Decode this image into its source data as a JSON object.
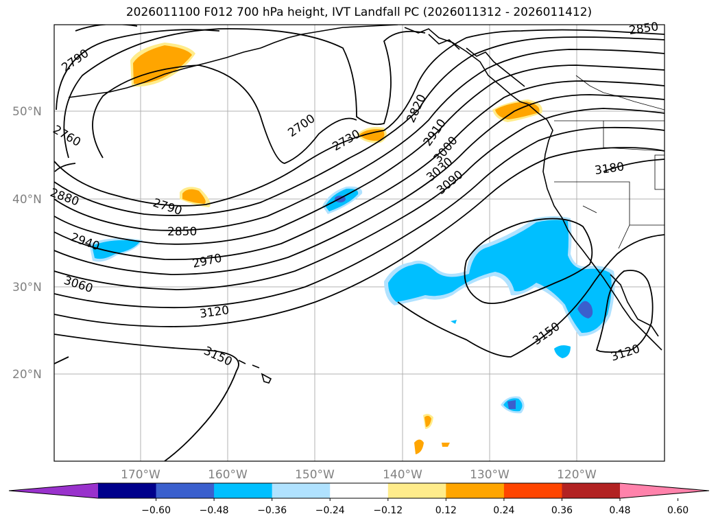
{
  "title": "2026011100 F012 700 hPa height, IVT Landfall PC (2026011312 - 2026011412)",
  "latitude_labels": [
    "50°N",
    "40°N",
    "30°N",
    "20°N"
  ],
  "longitude_labels": [
    "170°W",
    "160°W",
    "150°W",
    "140°W",
    "130°W",
    "120°W"
  ],
  "contour_labels": [
    "2790",
    "2760",
    "2880",
    "2940",
    "3060",
    "2790",
    "2850",
    "2970",
    "3120",
    "3150",
    "2700",
    "2730",
    "2820",
    "2910",
    "3000",
    "3030",
    "3090",
    "3180",
    "2850",
    "3150",
    "3120"
  ],
  "colorbar": {
    "tick_labels": [
      "−0.60",
      "−0.48",
      "−0.36",
      "−0.24",
      "−0.12",
      "0.12",
      "0.24",
      "0.36",
      "0.48",
      "0.60"
    ],
    "colors": [
      "#9932cc",
      "#00008b",
      "#3a5fcd",
      "#00bfff",
      "#b0e2ff",
      "#ffffff",
      "#ffec8b",
      "#ffa500",
      "#ff4500",
      "#b22222",
      "#ff82ab"
    ]
  },
  "colors": {
    "ivt_positive_weak": "#ffec8b",
    "ivt_positive": "#ffa500",
    "ivt_negative_weak": "#b0e2ff",
    "ivt_negative": "#00bfff",
    "ivt_negative_strong": "#3a5fcd"
  }
}
